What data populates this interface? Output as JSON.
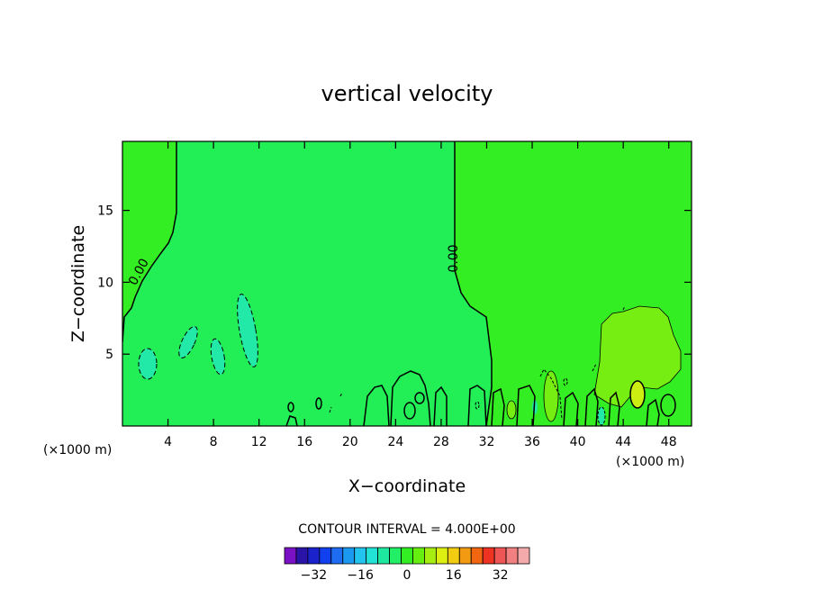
{
  "chart_data": {
    "type": "heatmap",
    "title": "vertical velocity",
    "xlabel": "X−coordinate",
    "ylabel": "Z−coordinate",
    "x_unit_left": "(×1000 m)",
    "x_unit_right": "(×1000 m)",
    "xlim": [
      0,
      50
    ],
    "ylim": [
      0,
      19.8
    ],
    "x_ticks": [
      4,
      8,
      12,
      16,
      20,
      24,
      28,
      32,
      36,
      40,
      44,
      48
    ],
    "y_ticks": [
      5,
      10,
      15
    ],
    "background_value_color": "#33ee22",
    "contour_label": "0.00",
    "contour_interval_text": "CONTOUR INTERVAL = 4.000E+00",
    "colorbar": {
      "colors": [
        "#7a11c4",
        "#2a14a8",
        "#1a22cc",
        "#1140ee",
        "#1e6cf2",
        "#1b98f0",
        "#22c3ee",
        "#22e2d8",
        "#1ee8a0",
        "#22ee66",
        "#33ee22",
        "#66ee11",
        "#a6ee11",
        "#ddee11",
        "#f2cc11",
        "#f29a11",
        "#f26611",
        "#ee3322",
        "#ee5555",
        "#f28080",
        "#f4aaaa"
      ],
      "tick_labels": [
        "−32",
        "−16",
        "0",
        "16",
        "32"
      ],
      "tick_values": [
        -32,
        -16,
        0,
        16,
        32
      ],
      "vmin": -42,
      "vmax": 42
    }
  }
}
